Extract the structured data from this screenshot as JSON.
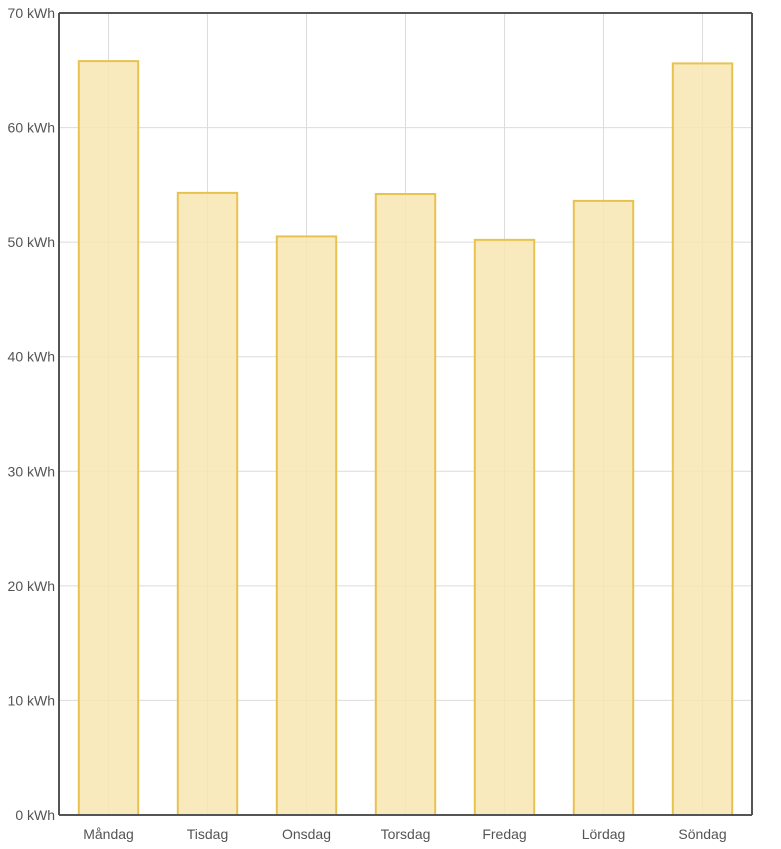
{
  "chart_data": {
    "type": "bar",
    "title": "",
    "xlabel": "",
    "ylabel": "",
    "categories": [
      "Måndag",
      "Tisdag",
      "Onsdag",
      "Torsdag",
      "Fredag",
      "Lördag",
      "Söndag"
    ],
    "values": [
      65.8,
      54.3,
      50.5,
      54.2,
      50.2,
      53.6,
      65.6
    ],
    "unit": "kWh",
    "ylim": [
      0,
      70
    ],
    "yticks": [
      0,
      10,
      20,
      30,
      40,
      50,
      60,
      70
    ],
    "ytick_labels": [
      "0 kWh",
      "10 kWh",
      "20 kWh",
      "30 kWh",
      "40 kWh",
      "50 kWh",
      "60 kWh",
      "70 kWh"
    ],
    "grid": true,
    "legend": "none",
    "colors": {
      "bar_fill": "#f8e6b1",
      "bar_stroke": "#e8c24f",
      "grid": "#dcdcdc",
      "axis": "#545454",
      "text": "#545454"
    }
  }
}
